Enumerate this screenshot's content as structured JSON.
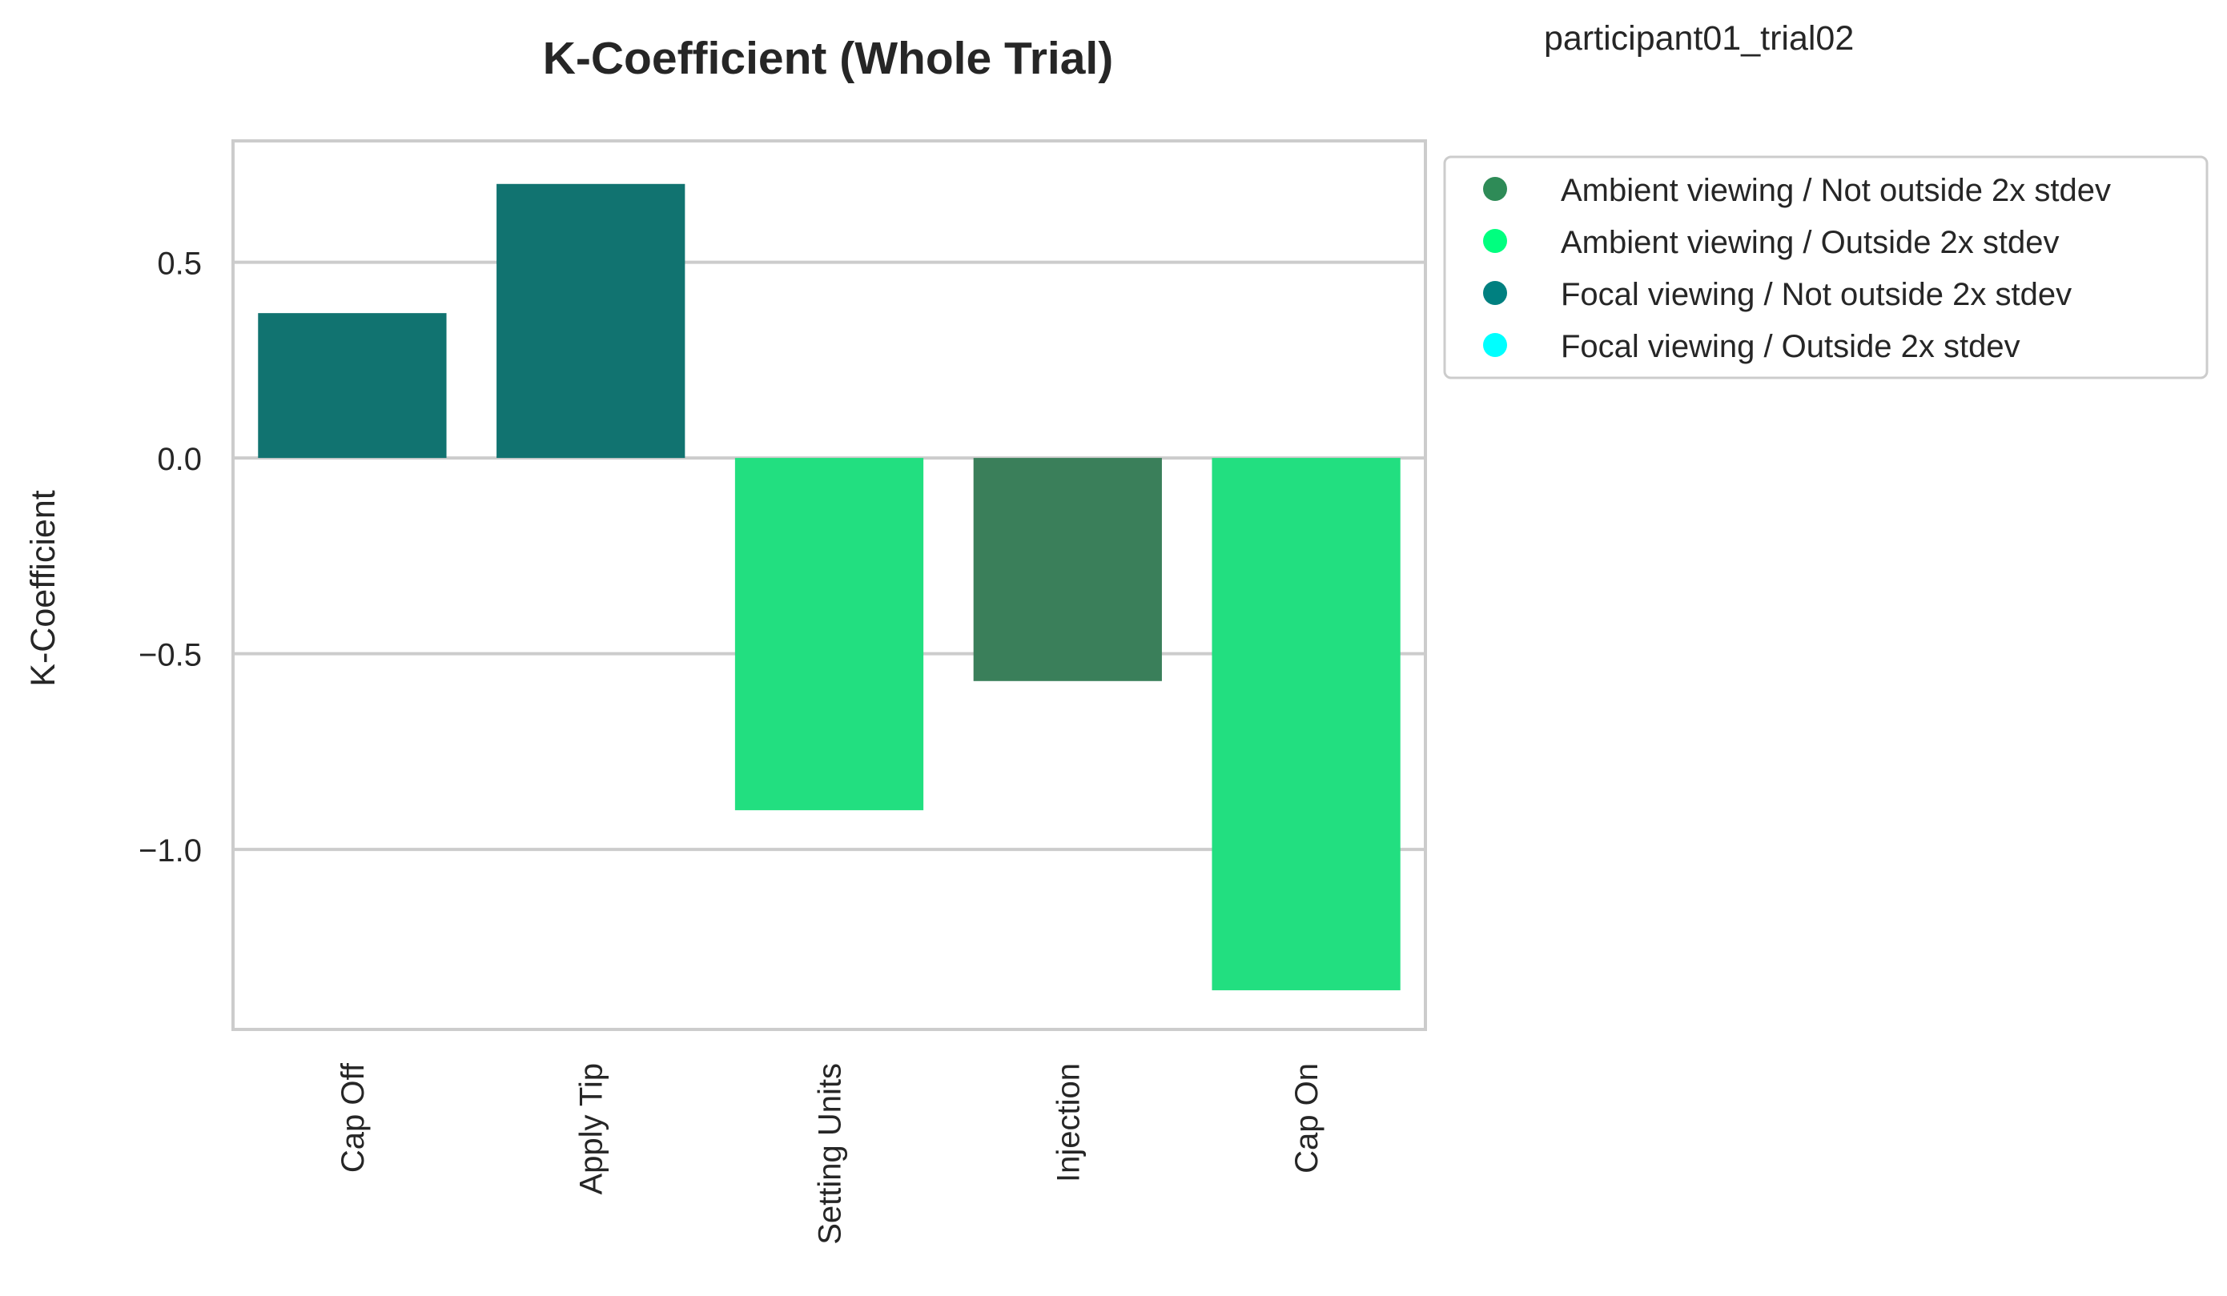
{
  "chart_data": {
    "type": "bar",
    "title": "K-Coefficient (Whole Trial)",
    "subtitle": "participant01_trial02",
    "xlabel": "",
    "ylabel": "K-Coefficient",
    "categories": [
      "Cap Off",
      "Apply Tip",
      "Setting Units",
      "Injection",
      "Cap On"
    ],
    "values": [
      0.37,
      0.7,
      -0.9,
      -0.57,
      -1.36
    ],
    "bar_groups": [
      "Focal viewing / Not outside 2x stdev",
      "Focal viewing / Not outside 2x stdev",
      "Ambient viewing / Outside 2x stdev",
      "Ambient viewing / Not outside 2x stdev",
      "Ambient viewing / Outside 2x stdev"
    ],
    "ylim": [
      -1.46,
      0.81
    ],
    "yticks": [
      0.5,
      0.0,
      -0.5,
      -1.0
    ],
    "ytick_labels": [
      "0.5",
      "0.0",
      "−0.5",
      "−1.0"
    ],
    "grid": true,
    "legend_position": "outside-right-top",
    "legend": [
      {
        "label": "Ambient viewing / Not outside 2x stdev",
        "color": "#2e8b57"
      },
      {
        "label": "Ambient viewing / Outside 2x stdev",
        "color": "#00ff7f"
      },
      {
        "label": "Focal viewing / Not outside 2x stdev",
        "color": "#008080"
      },
      {
        "label": "Focal viewing / Outside 2x stdev",
        "color": "#00ffff"
      }
    ],
    "bar_colors": {
      "Ambient viewing / Not outside 2x stdev": "#3a7f5a",
      "Ambient viewing / Outside 2x stdev": "#22df80",
      "Focal viewing / Not outside 2x stdev": "#117370",
      "Focal viewing / Outside 2x stdev": "#22e0e0"
    }
  }
}
